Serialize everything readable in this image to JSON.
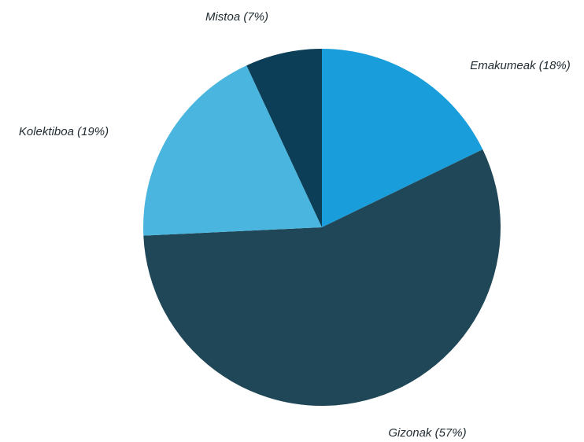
{
  "chart_data": {
    "type": "pie",
    "title": "",
    "slices": [
      {
        "name": "Emakumeak",
        "value": 18,
        "label": "Emakumeak (18%)",
        "color": "#1a9ddb"
      },
      {
        "name": "Gizonak",
        "value": 57,
        "label": "Gizonak (57%)",
        "color": "#1f4757"
      },
      {
        "name": "Kolektiboa",
        "value": 19,
        "label": "Kolektiboa (19%)",
        "color": "#4ab5de"
      },
      {
        "name": "Mistoa",
        "value": 7,
        "label": "Mistoa (7%)",
        "color": "#0c3f57"
      }
    ],
    "start_angle": "12 o'clock",
    "direction": "clockwise",
    "legend": "none"
  }
}
